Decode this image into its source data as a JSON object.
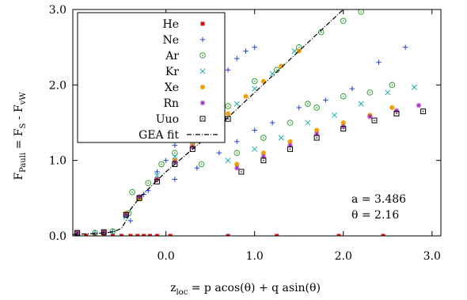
{
  "chart_data": {
    "type": "scatter",
    "xlabel": "z_loc = p acos(θ) + q asin(θ)",
    "ylabel": "F_Pauli = F_S - F_vW",
    "xlim": [
      -1.05,
      3.1
    ],
    "ylim": [
      0.0,
      3.0
    ],
    "x_ticks": [
      "0.0",
      "1.0",
      "2.0",
      "3.0"
    ],
    "y_ticks": [
      "0.0",
      "1.0",
      "2.0",
      "3.0"
    ],
    "grid": false,
    "legend_placement": "top-left",
    "annotations": [
      "a = 3.486",
      "θ = 2.16"
    ],
    "series": [
      {
        "name": "He",
        "marker": "square-filled",
        "color": "#e01010",
        "points": [
          [
            -0.9,
            0.0
          ],
          [
            -0.8,
            0.0
          ],
          [
            -0.7,
            0.0
          ],
          [
            -0.6,
            0.0
          ],
          [
            -0.5,
            0.0
          ],
          [
            -0.4,
            0.0
          ],
          [
            -0.32,
            0.0
          ],
          [
            -0.25,
            0.0
          ],
          [
            -0.18,
            0.0
          ],
          [
            -0.1,
            0.0
          ],
          [
            0.05,
            0.0
          ],
          [
            0.7,
            0.0
          ],
          [
            1.25,
            0.0
          ],
          [
            1.95,
            0.0
          ],
          [
            2.45,
            0.0
          ]
        ]
      },
      {
        "name": "Ne",
        "marker": "plus",
        "color": "#2040d0",
        "points": [
          [
            -1.0,
            0.04
          ],
          [
            -0.8,
            0.04
          ],
          [
            -0.6,
            0.06
          ],
          [
            -0.4,
            0.2
          ],
          [
            -0.25,
            0.55
          ],
          [
            -0.1,
            0.85
          ],
          [
            0.0,
            1.0
          ],
          [
            0.1,
            1.2
          ],
          [
            0.2,
            1.4
          ],
          [
            0.3,
            1.55
          ],
          [
            0.4,
            1.7
          ],
          [
            0.5,
            1.85
          ],
          [
            0.6,
            2.0
          ],
          [
            0.7,
            2.2
          ],
          [
            0.8,
            2.35
          ],
          [
            0.9,
            2.45
          ],
          [
            1.0,
            2.5
          ],
          [
            0.6,
            1.1
          ],
          [
            0.8,
            1.25
          ],
          [
            1.0,
            1.4
          ],
          [
            1.2,
            1.5
          ],
          [
            1.5,
            1.7
          ],
          [
            1.8,
            1.8
          ],
          [
            2.1,
            1.95
          ],
          [
            2.4,
            2.3
          ],
          [
            2.7,
            2.5
          ],
          [
            -0.2,
            0.6
          ],
          [
            0.1,
            0.75
          ],
          [
            0.35,
            0.9
          ],
          [
            0.2,
            1.5
          ],
          [
            0.4,
            1.8
          ]
        ]
      },
      {
        "name": "Ar",
        "marker": "circle-dot",
        "color": "#30a030",
        "points": [
          [
            -1.0,
            0.04
          ],
          [
            -0.8,
            0.04
          ],
          [
            -0.6,
            0.06
          ],
          [
            -0.42,
            0.3
          ],
          [
            -0.38,
            0.58
          ],
          [
            -0.3,
            0.5
          ],
          [
            -0.2,
            0.7
          ],
          [
            -0.05,
            0.95
          ],
          [
            0.1,
            1.1
          ],
          [
            0.3,
            1.3
          ],
          [
            0.5,
            1.5
          ],
          [
            0.7,
            1.72
          ],
          [
            1.0,
            2.05
          ],
          [
            1.25,
            2.2
          ],
          [
            1.5,
            2.5
          ],
          [
            1.75,
            2.7
          ],
          [
            2.0,
            2.85
          ],
          [
            2.2,
            2.97
          ],
          [
            0.8,
            1.1
          ],
          [
            1.1,
            1.3
          ],
          [
            1.4,
            1.5
          ],
          [
            1.7,
            1.7
          ],
          [
            2.0,
            1.85
          ],
          [
            2.3,
            1.9
          ],
          [
            2.55,
            2.0
          ],
          [
            0.4,
            0.95
          ],
          [
            1.6,
            1.75
          ]
        ]
      },
      {
        "name": "Kr",
        "marker": "x",
        "color": "#20b0b0",
        "points": [
          [
            -1.0,
            0.04
          ],
          [
            -0.7,
            0.05
          ],
          [
            -0.45,
            0.25
          ],
          [
            -0.3,
            0.5
          ],
          [
            -0.1,
            0.8
          ],
          [
            0.1,
            1.05
          ],
          [
            0.3,
            1.25
          ],
          [
            0.5,
            1.45
          ],
          [
            0.6,
            1.55
          ],
          [
            0.8,
            1.75
          ],
          [
            1.0,
            1.95
          ],
          [
            1.2,
            2.15
          ],
          [
            1.45,
            2.45
          ],
          [
            0.7,
            1.0
          ],
          [
            1.0,
            1.15
          ],
          [
            1.3,
            1.3
          ],
          [
            1.6,
            1.5
          ],
          [
            1.9,
            1.6
          ],
          [
            2.2,
            1.75
          ],
          [
            2.5,
            1.9
          ],
          [
            2.8,
            1.97
          ]
        ]
      },
      {
        "name": "Xe",
        "marker": "circle-filled",
        "color": "#f0a000",
        "points": [
          [
            -1.0,
            0.04
          ],
          [
            -0.7,
            0.05
          ],
          [
            -0.45,
            0.3
          ],
          [
            -0.3,
            0.5
          ],
          [
            -0.1,
            0.75
          ],
          [
            0.1,
            1.0
          ],
          [
            0.3,
            1.2
          ],
          [
            0.5,
            1.42
          ],
          [
            0.7,
            1.62
          ],
          [
            0.9,
            1.85
          ],
          [
            1.1,
            2.05
          ],
          [
            1.3,
            2.25
          ],
          [
            1.5,
            2.45
          ],
          [
            0.8,
            0.95
          ],
          [
            1.1,
            1.1
          ],
          [
            1.4,
            1.25
          ],
          [
            1.7,
            1.4
          ],
          [
            2.0,
            1.5
          ],
          [
            2.3,
            1.6
          ],
          [
            2.55,
            1.7
          ]
        ]
      },
      {
        "name": "Rn",
        "marker": "star",
        "color": "#a020c0",
        "points": [
          [
            -1.0,
            0.04
          ],
          [
            -0.7,
            0.05
          ],
          [
            -0.45,
            0.28
          ],
          [
            -0.3,
            0.52
          ],
          [
            -0.1,
            0.75
          ],
          [
            0.1,
            0.98
          ],
          [
            0.3,
            1.18
          ],
          [
            0.5,
            1.4
          ],
          [
            0.65,
            1.55
          ],
          [
            0.8,
            0.9
          ],
          [
            1.1,
            1.05
          ],
          [
            1.4,
            1.2
          ],
          [
            1.7,
            1.35
          ],
          [
            2.0,
            1.45
          ],
          [
            2.3,
            1.58
          ],
          [
            2.6,
            1.66
          ],
          [
            2.85,
            1.73
          ]
        ]
      },
      {
        "name": "Uuo",
        "marker": "square-dot",
        "color": "#000000",
        "points": [
          [
            -1.0,
            0.04
          ],
          [
            -0.7,
            0.05
          ],
          [
            -0.45,
            0.28
          ],
          [
            -0.3,
            0.5
          ],
          [
            -0.1,
            0.72
          ],
          [
            0.1,
            0.95
          ],
          [
            0.3,
            1.15
          ],
          [
            0.5,
            1.35
          ],
          [
            0.6,
            1.45
          ],
          [
            0.7,
            1.55
          ],
          [
            0.85,
            0.85
          ],
          [
            1.1,
            1.0
          ],
          [
            1.4,
            1.15
          ],
          [
            1.7,
            1.3
          ],
          [
            2.0,
            1.42
          ],
          [
            2.35,
            1.53
          ],
          [
            2.6,
            1.62
          ],
          [
            2.9,
            1.65
          ]
        ]
      },
      {
        "name": "GEA fit",
        "marker": "line-dashdot",
        "color": "#000000",
        "points": [
          [
            -1.05,
            0.02
          ],
          [
            -0.8,
            0.03
          ],
          [
            -0.6,
            0.05
          ],
          [
            -0.5,
            0.1
          ],
          [
            -0.45,
            0.2
          ],
          [
            -0.4,
            0.35
          ],
          [
            -0.3,
            0.5
          ],
          [
            -0.2,
            0.62
          ],
          [
            0.0,
            0.85
          ],
          [
            0.2,
            1.05
          ],
          [
            0.5,
            1.35
          ],
          [
            1.0,
            1.9
          ],
          [
            1.5,
            2.45
          ],
          [
            2.0,
            3.0
          ]
        ]
      }
    ]
  }
}
